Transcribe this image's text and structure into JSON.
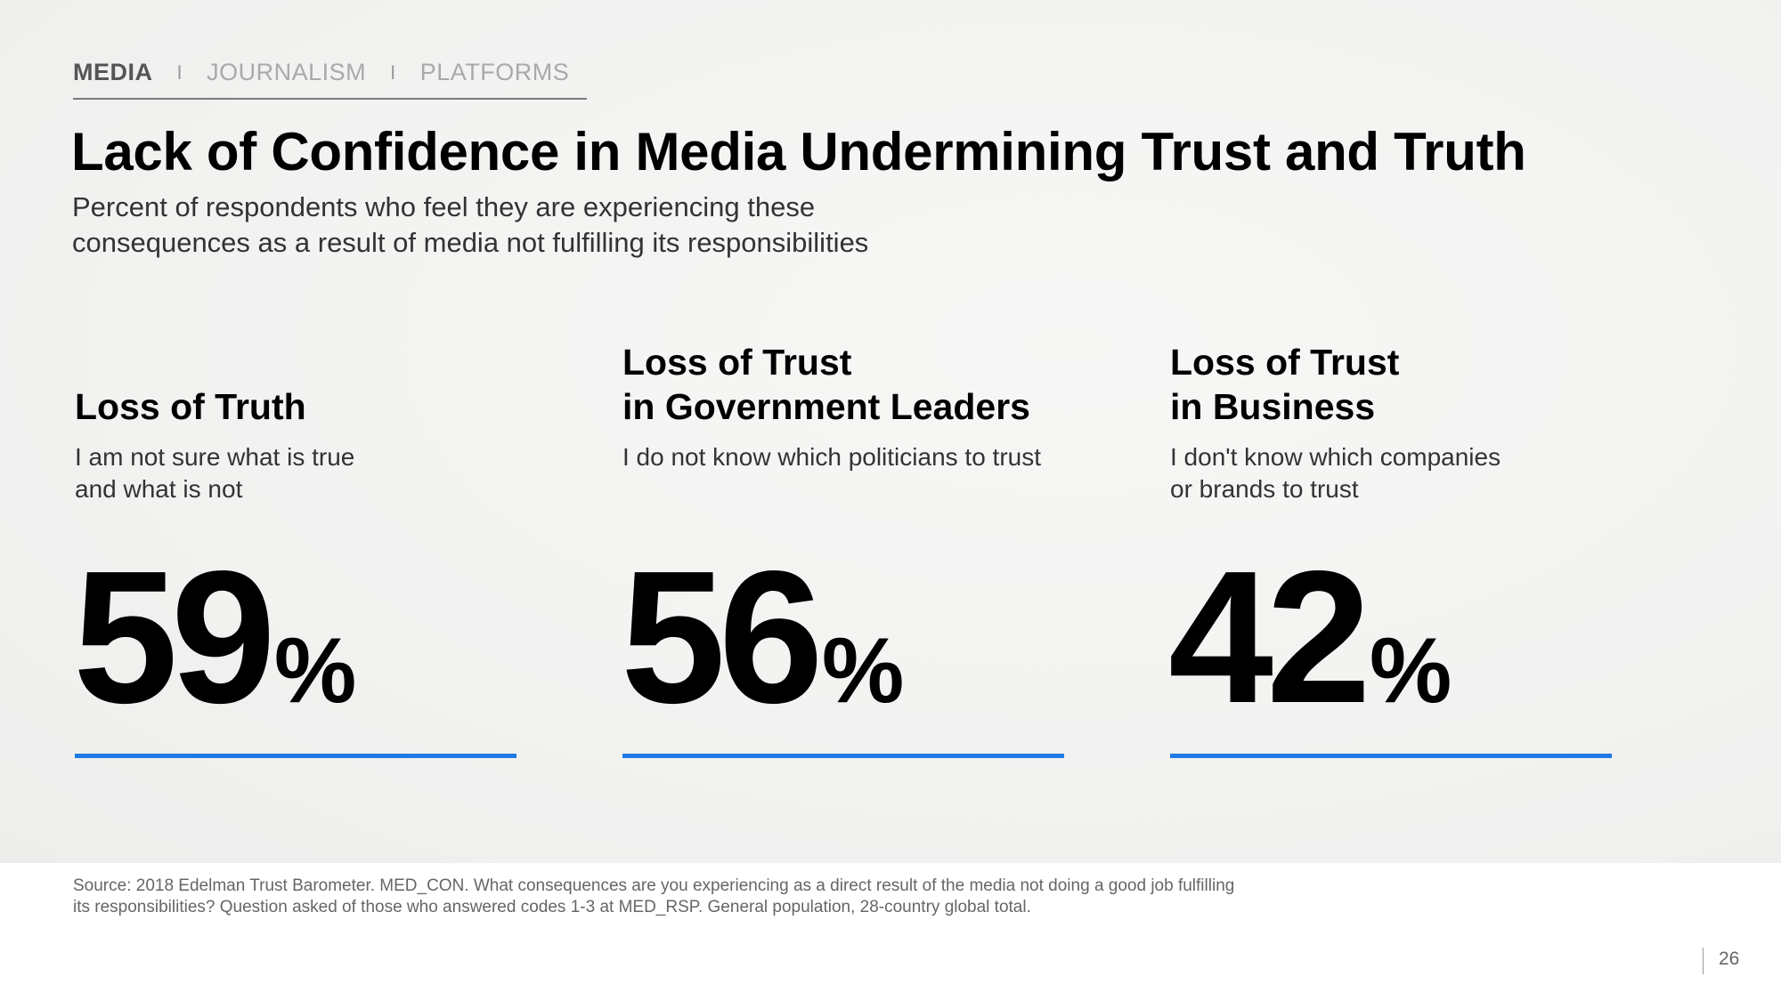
{
  "nav": {
    "items": [
      "MEDIA",
      "JOURNALISM",
      "PLATFORMS"
    ],
    "separator": "I"
  },
  "title": "Lack of Confidence in Media Undermining Trust and Truth",
  "subtitle_lines": [
    "Percent of respondents who feel they are experiencing these",
    "consequences as a result of media not fulfilling its responsibilities"
  ],
  "cards": [
    {
      "heading_lines": [
        "Loss of Truth"
      ],
      "desc_lines": [
        "I am not sure what is true",
        "and what is not"
      ],
      "value": "59",
      "unit": "%"
    },
    {
      "heading_lines": [
        "Loss of Trust",
        "in Government Leaders"
      ],
      "desc_lines": [
        "I do not know which politicians to trust"
      ],
      "value": "56",
      "unit": "%"
    },
    {
      "heading_lines": [
        "Loss of Trust",
        "in Business"
      ],
      "desc_lines": [
        "I don't know which companies",
        "or brands to trust"
      ],
      "value": "42",
      "unit": "%"
    }
  ],
  "source_lines": [
    "Source: 2018 Edelman Trust Barometer. MED_CON. What consequences are you experiencing as a direct result of the media not doing a good job fulfilling",
    "its responsibilities? Question asked of those who answered codes 1-3 at MED_RSP. General population, 28-country global total."
  ],
  "page_number": "26",
  "colors": {
    "accent": "#1f7be3",
    "text": "#000000",
    "muted": "#a9a9a9"
  }
}
